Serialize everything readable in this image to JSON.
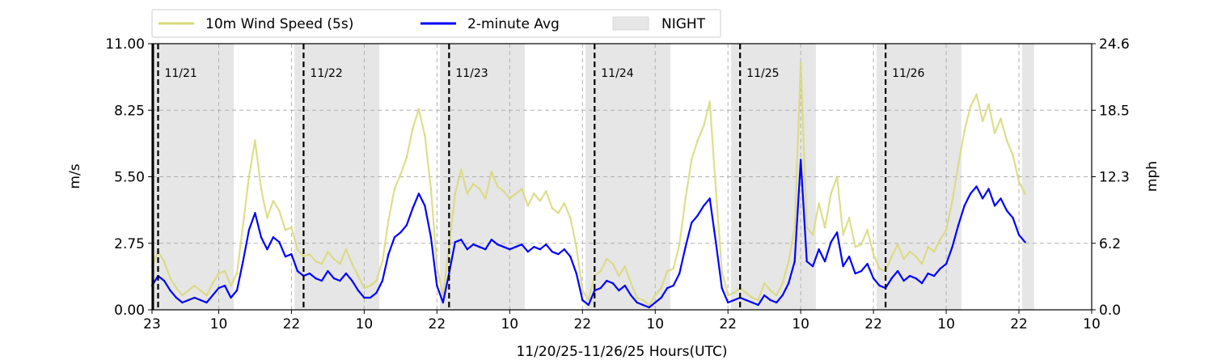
{
  "chart_data": {
    "type": "line",
    "xlabel": "11/20/25-11/26/25  Hours(UTC)",
    "ylabel_left": "m/s",
    "ylabel_right": "mph",
    "ylim": [
      0,
      11
    ],
    "xlim_hours": [
      0,
      155
    ],
    "x_ticks": [
      {
        "h": 0,
        "label": "23"
      },
      {
        "h": 11,
        "label": "10"
      },
      {
        "h": 23,
        "label": "22"
      },
      {
        "h": 35,
        "label": "10"
      },
      {
        "h": 47,
        "label": "22"
      },
      {
        "h": 59,
        "label": "10"
      },
      {
        "h": 71,
        "label": "22"
      },
      {
        "h": 83,
        "label": "10"
      },
      {
        "h": 95,
        "label": "22"
      },
      {
        "h": 107,
        "label": "10"
      },
      {
        "h": 119,
        "label": "22"
      },
      {
        "h": 131,
        "label": "10"
      },
      {
        "h": 143,
        "label": "22"
      },
      {
        "h": 155,
        "label": "10"
      }
    ],
    "y_ticks_left": [
      "0.00",
      "2.75",
      "5.50",
      "8.25",
      "11.00"
    ],
    "y_ticks_right": [
      "0.0",
      "6.2",
      "12.3",
      "18.5",
      "24.6"
    ],
    "grid": "horizontal-dashed",
    "legend": [
      {
        "label": "10m Wind Speed (5s)",
        "color": "#d8d878"
      },
      {
        "label": "2-minute Avg",
        "color": "#0000ff"
      },
      {
        "label": "NIGHT",
        "color": "#e6e6e6"
      }
    ],
    "legend_placement": "top",
    "night_periods": [
      [
        0,
        13.5
      ],
      [
        23.5,
        37.5
      ],
      [
        47.5,
        61.5
      ],
      [
        71.5,
        85.5
      ],
      [
        95.5,
        109.5
      ],
      [
        119.5,
        133.5
      ],
      [
        143.5,
        145.5
      ]
    ],
    "day_markers": [
      {
        "h": 1,
        "label": "11/21"
      },
      {
        "h": 25,
        "label": "11/22"
      },
      {
        "h": 49,
        "label": "11/23"
      },
      {
        "h": 73,
        "label": "11/24"
      },
      {
        "h": 97,
        "label": "11/25"
      },
      {
        "h": 121,
        "label": "11/26"
      }
    ],
    "series": [
      {
        "name": "2-minute Avg",
        "color": "#0000ff",
        "x": [
          0,
          1,
          2,
          3,
          4,
          5,
          6,
          7,
          8,
          9,
          10,
          11,
          12,
          13,
          14,
          15,
          16,
          17,
          18,
          19,
          20,
          21,
          22,
          23,
          24,
          25,
          26,
          27,
          28,
          29,
          30,
          31,
          32,
          33,
          34,
          35,
          36,
          37,
          38,
          39,
          40,
          41,
          42,
          43,
          44,
          45,
          46,
          47,
          48,
          49,
          50,
          51,
          52,
          53,
          54,
          55,
          56,
          57,
          58,
          59,
          60,
          61,
          62,
          63,
          64,
          65,
          66,
          67,
          68,
          69,
          70,
          71,
          72,
          73,
          74,
          75,
          76,
          77,
          78,
          79,
          80,
          81,
          82,
          83,
          84,
          85,
          86,
          87,
          88,
          89,
          90,
          91,
          92,
          93,
          94,
          95,
          96,
          97,
          98,
          99,
          100,
          101,
          102,
          103,
          104,
          105,
          106,
          107,
          108,
          109,
          110,
          111,
          112,
          113,
          114,
          115,
          116,
          117,
          118,
          119,
          120,
          121,
          122,
          123,
          124,
          125,
          126,
          127,
          128,
          129,
          130,
          131,
          132,
          133,
          134,
          135,
          136,
          137,
          138,
          139,
          140,
          141,
          142,
          143,
          144
        ],
        "values": [
          1.0,
          1.4,
          1.2,
          0.8,
          0.5,
          0.3,
          0.4,
          0.5,
          0.4,
          0.3,
          0.6,
          0.9,
          1.0,
          0.5,
          0.8,
          2.0,
          3.3,
          4.0,
          3.0,
          2.5,
          3.0,
          2.8,
          2.2,
          2.3,
          1.6,
          1.4,
          1.5,
          1.3,
          1.2,
          1.6,
          1.3,
          1.2,
          1.5,
          1.2,
          0.8,
          0.5,
          0.5,
          0.7,
          1.2,
          2.3,
          3.0,
          3.2,
          3.5,
          4.2,
          4.8,
          4.3,
          3.0,
          1.0,
          0.3,
          1.5,
          2.8,
          2.9,
          2.5,
          2.7,
          2.6,
          2.5,
          2.9,
          2.7,
          2.6,
          2.5,
          2.6,
          2.7,
          2.4,
          2.6,
          2.5,
          2.7,
          2.4,
          2.3,
          2.5,
          2.2,
          1.5,
          0.4,
          0.2,
          0.8,
          0.9,
          1.2,
          1.1,
          0.8,
          1.0,
          0.6,
          0.3,
          0.2,
          0.1,
          0.3,
          0.5,
          0.9,
          1.0,
          1.5,
          2.6,
          3.6,
          3.9,
          4.3,
          4.6,
          2.8,
          0.9,
          0.3,
          0.4,
          0.5,
          0.4,
          0.3,
          0.2,
          0.6,
          0.4,
          0.3,
          0.6,
          1.1,
          2.0,
          6.2,
          2.0,
          1.8,
          2.5,
          2.0,
          2.8,
          3.2,
          1.8,
          2.2,
          1.5,
          1.6,
          1.9,
          1.3,
          1.0,
          0.9,
          1.3,
          1.6,
          1.2,
          1.4,
          1.3,
          1.1,
          1.5,
          1.4,
          1.7,
          1.9,
          2.6,
          3.5,
          4.3,
          4.8,
          5.1,
          4.6,
          5.0,
          4.3,
          4.6,
          4.1,
          3.8,
          3.1,
          2.8
        ]
      },
      {
        "name": "10m Wind Speed (5s)",
        "color": "#d8d878",
        "x": [
          0,
          1,
          2,
          3,
          4,
          5,
          6,
          7,
          8,
          9,
          10,
          11,
          12,
          13,
          14,
          15,
          16,
          17,
          18,
          19,
          20,
          21,
          22,
          23,
          24,
          25,
          26,
          27,
          28,
          29,
          30,
          31,
          32,
          33,
          34,
          35,
          36,
          37,
          38,
          39,
          40,
          41,
          42,
          43,
          44,
          45,
          46,
          47,
          48,
          49,
          50,
          51,
          52,
          53,
          54,
          55,
          56,
          57,
          58,
          59,
          60,
          61,
          62,
          63,
          64,
          65,
          66,
          67,
          68,
          69,
          70,
          71,
          72,
          73,
          74,
          75,
          76,
          77,
          78,
          79,
          80,
          81,
          82,
          83,
          84,
          85,
          86,
          87,
          88,
          89,
          90,
          91,
          92,
          93,
          94,
          95,
          96,
          97,
          98,
          99,
          100,
          101,
          102,
          103,
          104,
          105,
          106,
          107,
          108,
          109,
          110,
          111,
          112,
          113,
          114,
          115,
          116,
          117,
          118,
          119,
          120,
          121,
          122,
          123,
          124,
          125,
          126,
          127,
          128,
          129,
          130,
          131,
          132,
          133,
          134,
          135,
          136,
          137,
          138,
          139,
          140,
          141,
          142,
          143,
          144
        ],
        "values": [
          1.8,
          2.4,
          2.0,
          1.3,
          0.9,
          0.6,
          0.8,
          1.0,
          0.8,
          0.6,
          1.1,
          1.5,
          1.6,
          1.0,
          1.5,
          3.5,
          5.5,
          7.0,
          5.0,
          3.8,
          4.5,
          4.1,
          3.3,
          3.4,
          2.5,
          2.2,
          2.3,
          2.0,
          1.9,
          2.4,
          2.1,
          1.9,
          2.5,
          1.9,
          1.4,
          0.9,
          1.0,
          1.2,
          2.0,
          3.7,
          5.0,
          5.6,
          6.3,
          7.5,
          8.3,
          7.2,
          5.0,
          1.8,
          0.6,
          2.6,
          4.8,
          5.8,
          4.8,
          5.2,
          5.0,
          4.6,
          5.7,
          5.1,
          4.9,
          4.6,
          4.8,
          5.0,
          4.3,
          4.8,
          4.5,
          4.9,
          4.2,
          4.0,
          4.4,
          3.8,
          2.6,
          0.8,
          0.4,
          1.4,
          1.6,
          2.1,
          1.9,
          1.4,
          1.8,
          1.1,
          0.5,
          0.4,
          0.2,
          0.6,
          0.9,
          1.6,
          1.7,
          2.7,
          4.6,
          6.2,
          7.0,
          7.6,
          8.6,
          5.0,
          1.6,
          0.6,
          0.7,
          0.9,
          0.7,
          0.5,
          0.4,
          1.1,
          0.8,
          0.6,
          1.1,
          2.0,
          3.4,
          10.2,
          3.4,
          3.1,
          4.4,
          3.4,
          4.8,
          5.5,
          3.1,
          3.8,
          2.6,
          2.7,
          3.3,
          2.3,
          1.7,
          1.6,
          2.2,
          2.7,
          2.1,
          2.4,
          2.2,
          1.9,
          2.6,
          2.4,
          2.9,
          3.3,
          4.5,
          6.0,
          7.4,
          8.4,
          8.9,
          7.8,
          8.5,
          7.3,
          7.9,
          7.0,
          6.4,
          5.3,
          4.8
        ]
      }
    ]
  }
}
